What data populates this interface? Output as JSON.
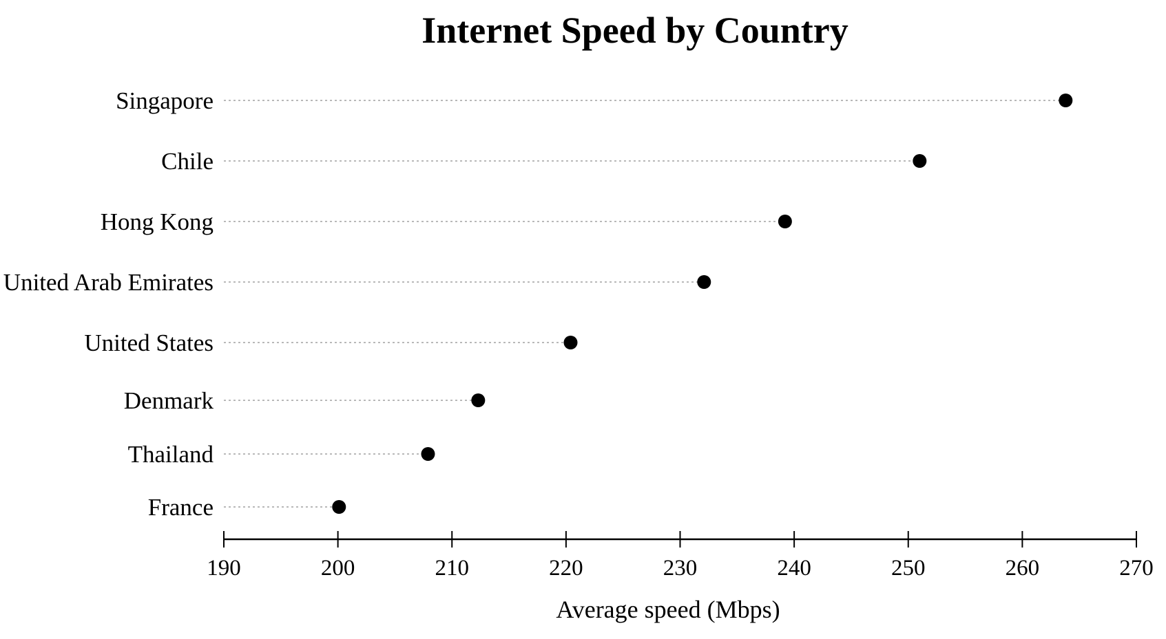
{
  "chart_data": {
    "type": "scatter",
    "title": "Internet Speed by Country",
    "xlabel": "Average speed (Mbps)",
    "ylabel": "",
    "categories": [
      "Singapore",
      "Chile",
      "Hong Kong",
      "United Arab Emirates",
      "United States",
      "Denmark",
      "Thailand",
      "France"
    ],
    "values": [
      263.8,
      251.0,
      239.2,
      232.1,
      220.4,
      212.3,
      207.9,
      200.1
    ],
    "xlim": [
      190,
      270
    ],
    "xticks": [
      "190",
      "200",
      "210",
      "220",
      "230",
      "240",
      "250",
      "260",
      "270"
    ],
    "grid": false,
    "legend": "none",
    "marker_color": "#000000",
    "stem_color": "#b8b8b8"
  }
}
